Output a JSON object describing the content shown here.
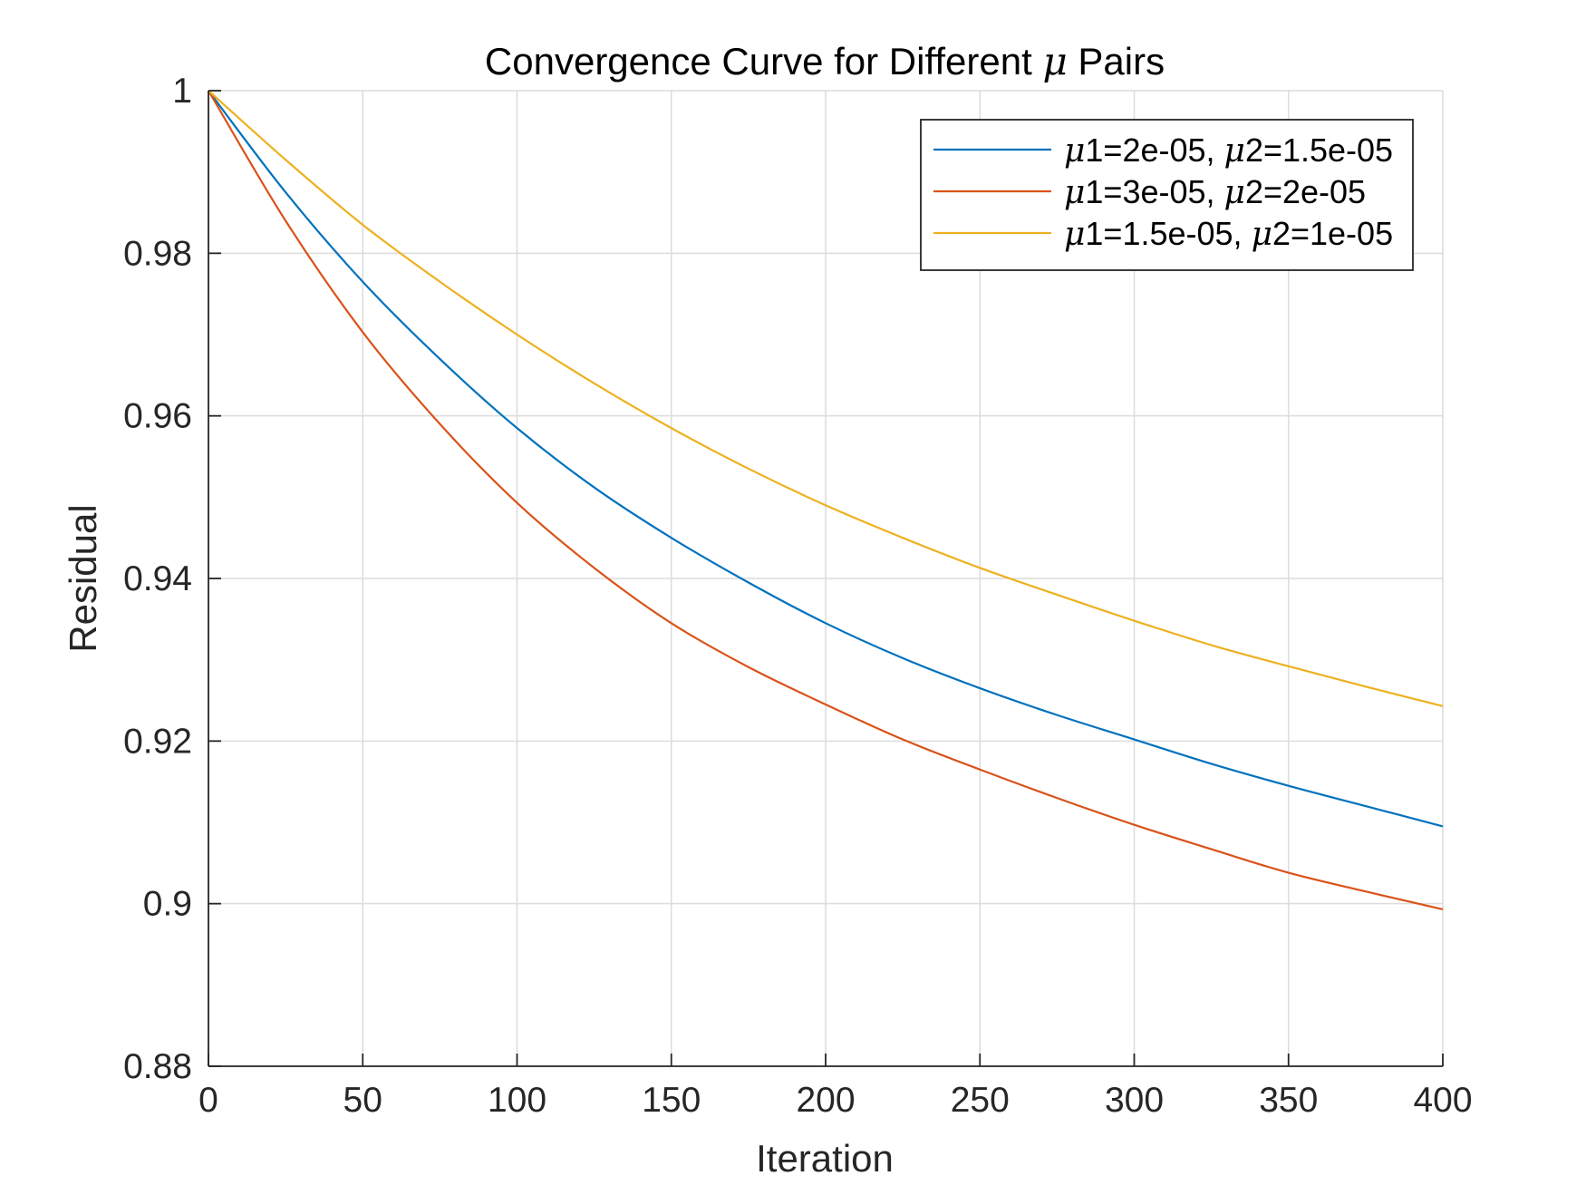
{
  "chart_data": {
    "type": "line",
    "title_prefix": "Convergence Curve for Different ",
    "title_symbol": "μ",
    "title_suffix": " Pairs",
    "xlabel": "Iteration",
    "ylabel": "Residual",
    "xlim": [
      0,
      400
    ],
    "ylim": [
      0.88,
      1
    ],
    "x_ticks": [
      0,
      50,
      100,
      150,
      200,
      250,
      300,
      350,
      400
    ],
    "x_tick_labels": [
      "0",
      "50",
      "100",
      "150",
      "200",
      "250",
      "300",
      "350",
      "400"
    ],
    "y_ticks": [
      0.88,
      0.9,
      0.92,
      0.94,
      0.96,
      0.98,
      1
    ],
    "y_tick_labels": [
      "0.88",
      "0.9",
      "0.92",
      "0.94",
      "0.96",
      "0.98",
      "1"
    ],
    "grid": true,
    "legend_position": "top-right",
    "x": [
      0,
      25,
      50,
      75,
      100,
      125,
      150,
      175,
      200,
      225,
      250,
      275,
      300,
      325,
      350,
      375,
      400
    ],
    "series": [
      {
        "name_parts": [
          "μ",
          "1=2e-05, ",
          "μ",
          "2=1.5e-05"
        ],
        "color": "#0072BD",
        "values": [
          1.0,
          0.9875,
          0.9765,
          0.967,
          0.9585,
          0.9512,
          0.945,
          0.9395,
          0.9345,
          0.9302,
          0.9265,
          0.9232,
          0.9202,
          0.9172,
          0.9145,
          0.912,
          0.9095
        ]
      },
      {
        "name_parts": [
          "μ",
          "1=3e-05, ",
          "μ",
          "2=2e-05"
        ],
        "color": "#D95319",
        "values": [
          1.0,
          0.984,
          0.9703,
          0.959,
          0.9493,
          0.9413,
          0.9345,
          0.9291,
          0.9245,
          0.9202,
          0.9165,
          0.913,
          0.9097,
          0.9067,
          0.9038,
          0.9015,
          0.8993
        ]
      },
      {
        "name_parts": [
          "μ",
          "1=1.5e-05, ",
          "μ",
          "2=1e-05"
        ],
        "color": "#EDB120",
        "values": [
          1.0,
          0.9915,
          0.9835,
          0.9765,
          0.97,
          0.964,
          0.9585,
          0.9535,
          0.949,
          0.945,
          0.9413,
          0.938,
          0.9348,
          0.9318,
          0.9292,
          0.9267,
          0.9243
        ]
      }
    ]
  }
}
